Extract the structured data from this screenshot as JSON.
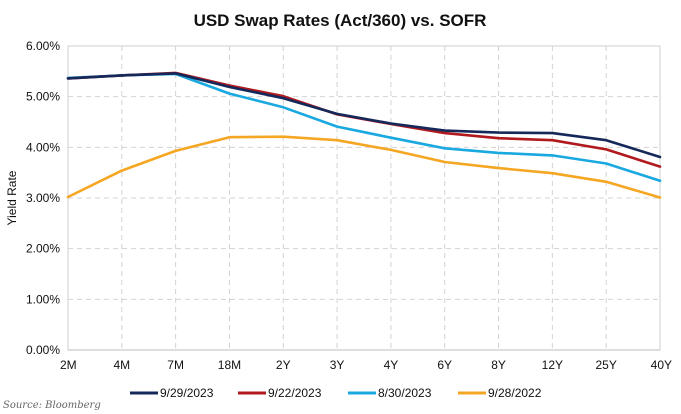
{
  "chart_data": {
    "type": "line",
    "title": "USD Swap Rates (Act/360) vs. SOFR",
    "xlabel": "",
    "ylabel": "Yield Rate",
    "categories": [
      "2M",
      "4M",
      "7M",
      "18M",
      "2Y",
      "3Y",
      "4Y",
      "6Y",
      "8Y",
      "12Y",
      "25Y",
      "40Y"
    ],
    "yticks": [
      "0.00%",
      "1.00%",
      "2.00%",
      "3.00%",
      "4.00%",
      "5.00%",
      "6.00%"
    ],
    "ylim": [
      0,
      6
    ],
    "grid": true,
    "legend_position": "bottom",
    "series": [
      {
        "name": "9/29/2023",
        "color": "#14285a",
        "values": [
          5.36,
          5.42,
          5.46,
          5.19,
          4.97,
          4.66,
          4.47,
          4.33,
          4.29,
          4.28,
          4.14,
          3.81
        ]
      },
      {
        "name": "9/22/2023",
        "color": "#b0191e",
        "values": [
          5.36,
          5.42,
          5.47,
          5.22,
          5.01,
          4.65,
          4.46,
          4.28,
          4.18,
          4.14,
          3.96,
          3.62
        ]
      },
      {
        "name": "8/30/2023",
        "color": "#19a8e0",
        "values": [
          5.37,
          5.42,
          5.45,
          5.06,
          4.79,
          4.41,
          4.19,
          3.98,
          3.89,
          3.84,
          3.68,
          3.34
        ]
      },
      {
        "name": "9/28/2022",
        "color": "#f5a623",
        "values": [
          3.02,
          3.54,
          3.93,
          4.2,
          4.21,
          4.14,
          3.95,
          3.71,
          3.59,
          3.49,
          3.32,
          3.01
        ]
      }
    ]
  },
  "source": "Source: Bloomberg"
}
